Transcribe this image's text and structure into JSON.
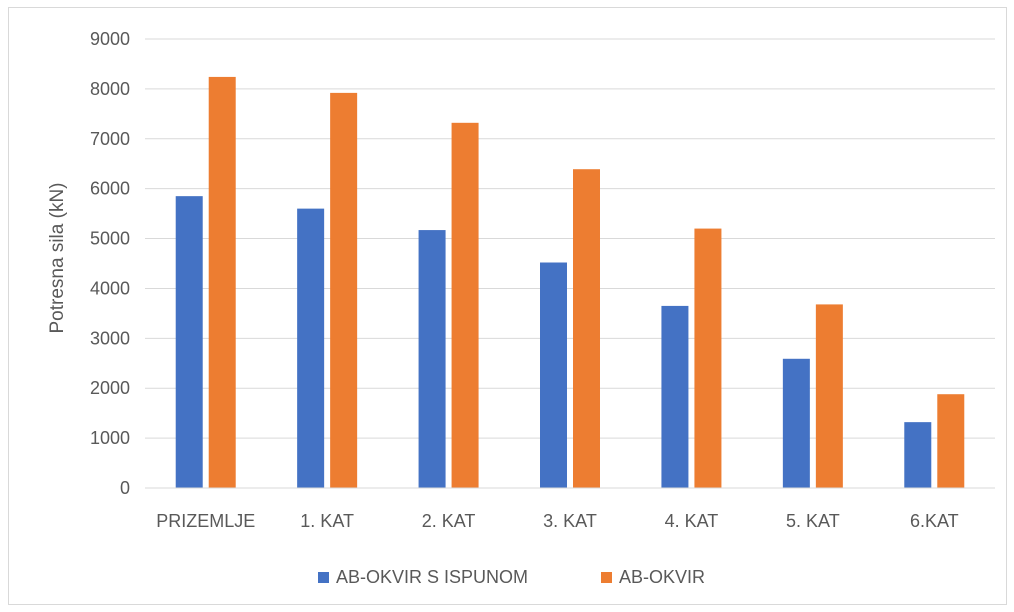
{
  "chart_data": {
    "type": "bar",
    "title": "",
    "xlabel": "",
    "ylabel": "Potresna sila (kN)",
    "ylim": [
      0,
      9000
    ],
    "yticks": [
      0,
      1000,
      2000,
      3000,
      4000,
      5000,
      6000,
      7000,
      8000,
      9000
    ],
    "grid": true,
    "legend_position": "bottom",
    "categories": [
      "PRIZEMLJE",
      "1. KAT",
      "2. KAT",
      "3. KAT",
      "4. KAT",
      "5. KAT",
      "6.KAT"
    ],
    "series": [
      {
        "name": "AB-OKVIR S ISPUNOM",
        "color": "#4472C4",
        "values": [
          5850,
          5600,
          5170,
          4520,
          3650,
          2590,
          1320
        ]
      },
      {
        "name": "AB-OKVIR",
        "color": "#ED7D31",
        "values": [
          8240,
          7920,
          7320,
          6390,
          5200,
          3680,
          1880
        ]
      }
    ]
  }
}
